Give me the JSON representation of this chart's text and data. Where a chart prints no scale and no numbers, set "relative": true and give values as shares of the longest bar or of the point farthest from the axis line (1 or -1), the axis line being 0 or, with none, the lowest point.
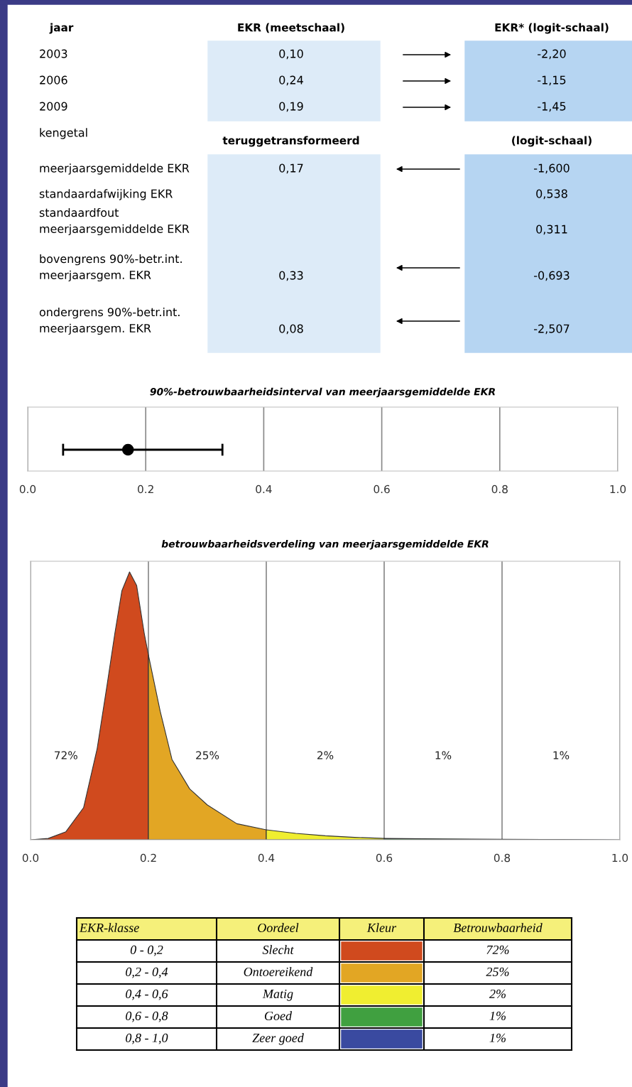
{
  "chart_data": [
    {
      "type": "other",
      "annotations": [
        "jaar",
        "EKR (meetschaal)",
        "EKR* (logit-schaal)",
        "2003",
        "0,10",
        "-2,20",
        "2006",
        "0,24",
        "-1,15",
        "2009",
        "0,19",
        "-1,45",
        "kengetal",
        "teruggetransformeerd",
        "(logit-schaal)",
        "meerjaarsgemiddelde EKR",
        "0,17",
        "-1,600",
        "standaardafwijking EKR",
        "0,538",
        "standaardfout\nmeerjaarsgemiddelde EKR",
        "0,311",
        "bovengrens 90%-betr.int.\nmeerjaarsgem. EKR",
        "0,33",
        "-0,693",
        "ondergrens 90%-betr.int.\nmeerjaarsgem. EKR",
        "0,08",
        "-2,507"
      ]
    },
    {
      "type": "scatter",
      "title": "90%-betrouwbaarheidsinterval van meerjaarsgemiddelde EKR",
      "orientation": "horizontal",
      "categories": [
        null
      ],
      "values": [
        0.17
      ],
      "errors": [
        [
          0.06,
          0.33
        ]
      ],
      "color": "#000000",
      "marker": "circle",
      "xlim": [
        0,
        1
      ],
      "xticks": [
        {
          "value": 0,
          "label": "0.0"
        },
        {
          "value": 0.2,
          "label": "0.2"
        },
        {
          "value": 0.4,
          "label": "0.4"
        },
        {
          "value": 0.6,
          "label": "0.6"
        },
        {
          "value": 0.8,
          "label": "0.8"
        },
        {
          "value": 1,
          "label": "1.0"
        }
      ],
      "grid": "x",
      "tick_labels": "x"
    },
    {
      "type": "area",
      "title": "betrouwbaarheidsverdeling van meerjaarsgemiddelde EKR",
      "relative": true,
      "grid": "x",
      "tick_labels": "x",
      "xlim": [
        0,
        1
      ],
      "xticks": [
        {
          "value": 0,
          "label": "0.0"
        },
        {
          "value": 0.2,
          "label": "0.2"
        },
        {
          "value": 0.4,
          "label": "0.4"
        },
        {
          "value": 0.6,
          "label": "0.6"
        },
        {
          "value": 0.8,
          "label": "0.8"
        },
        {
          "value": 1,
          "label": "1.0"
        }
      ],
      "series": [
        {
          "color": "#d04a1e",
          "x": [
            0,
            0.03,
            0.06,
            0.09,
            0.113,
            0.13,
            0.143,
            0.155,
            0.168,
            0.18,
            0.193,
            0.2
          ],
          "values": [
            0,
            0.005,
            0.03,
            0.12,
            0.34,
            0.58,
            0.77,
            0.93,
            1.0,
            0.95,
            0.77,
            0.69
          ]
        },
        {
          "color": "#e2a624",
          "x": [
            0.2,
            0.22,
            0.24,
            0.27,
            0.3,
            0.35,
            0.4
          ],
          "values": [
            0.69,
            0.48,
            0.3,
            0.19,
            0.13,
            0.06,
            0.037
          ]
        },
        {
          "color": "#f0ee30",
          "x": [
            0.4,
            0.45,
            0.5,
            0.55,
            0.6
          ],
          "values": [
            0.037,
            0.024,
            0.015,
            0.009,
            0.005
          ]
        },
        {
          "color": "#40a040",
          "x": [
            0.6,
            0.7,
            0.8
          ],
          "values": [
            0.005,
            0.003,
            0.002
          ]
        },
        {
          "color": "#3a4aa0",
          "x": [
            0.8,
            0.9,
            1.0
          ],
          "values": [
            0.002,
            0.001,
            0
          ]
        }
      ],
      "annotations": [
        "72%",
        "25%",
        "2%",
        "1%",
        "1%"
      ]
    },
    {
      "type": "other",
      "annotations": [
        "EKR-klasse",
        "Oordeel",
        "Kleur",
        "Betrouwbaarheid",
        "0 - 0,2",
        "Slecht",
        "72%",
        "0,2 - 0,4",
        "Ontoereikend",
        "25%",
        "0,4 - 0,6",
        "Matig",
        "2%",
        "0,6 - 0,8",
        "Goed",
        "1%",
        "0,8 - 1,0",
        "Zeer goed",
        "1%"
      ],
      "colors": [
        "#d04a1e",
        "#e2a624",
        "#f0ee30",
        "#40a040",
        "#3a4aa0"
      ]
    }
  ]
}
